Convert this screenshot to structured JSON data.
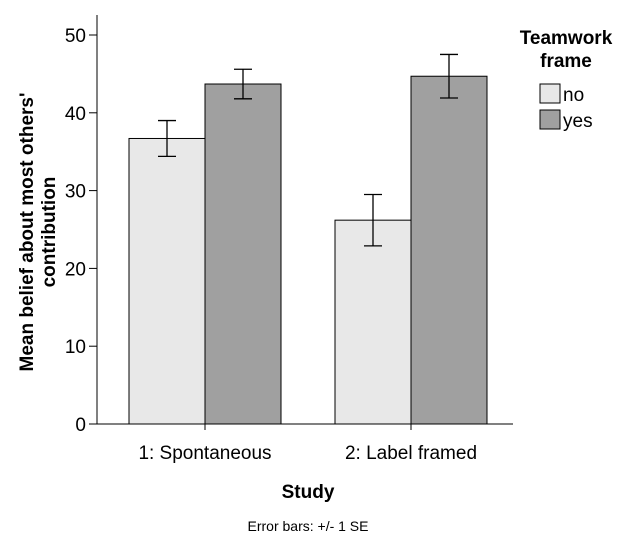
{
  "chart_data": {
    "type": "bar",
    "categories": [
      "1: Spontaneous",
      "2: Label framed"
    ],
    "series": [
      {
        "name": "no",
        "values": [
          36.7,
          26.2
        ],
        "error": [
          2.3,
          3.3
        ],
        "color": "#e8e8e8"
      },
      {
        "name": "yes",
        "values": [
          43.7,
          44.7
        ],
        "error": [
          1.9,
          2.8
        ],
        "color": "#a0a0a0"
      }
    ],
    "title": "",
    "xlabel": "Study",
    "ylabel": "Mean belief about most others' contribution",
    "ylabel_lines": [
      "Mean belief about most others'",
      "contribution"
    ],
    "ylim": [
      0,
      50
    ],
    "yticks": [
      0,
      10,
      20,
      30,
      40,
      50
    ],
    "grid": false,
    "legend": {
      "title_lines": [
        "Teamwork",
        "frame"
      ],
      "position": "top-right"
    },
    "note": "Error bars: +/- 1 SE"
  }
}
